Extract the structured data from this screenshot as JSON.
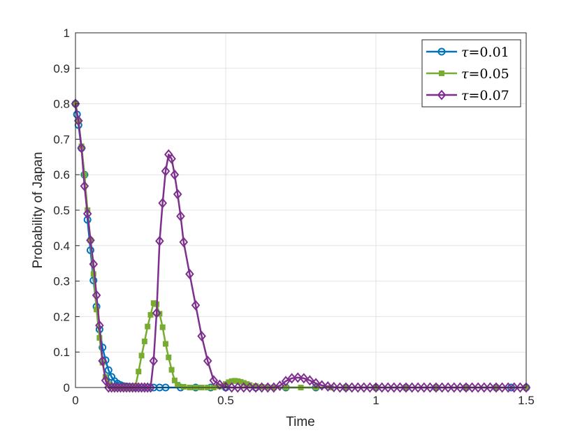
{
  "chart_data": {
    "type": "line",
    "title": "",
    "xlabel": "Time",
    "ylabel": "Probability of Japan",
    "xlim": [
      0,
      1.5
    ],
    "ylim": [
      0,
      1
    ],
    "xticks": [
      0,
      0.5,
      1,
      1.5
    ],
    "xtick_labels": [
      "0",
      "0.5",
      "1",
      "1.5"
    ],
    "yticks": [
      0,
      0.1,
      0.2,
      0.3,
      0.4,
      0.5,
      0.6,
      0.7,
      0.8,
      0.9,
      1
    ],
    "ytick_labels": [
      "0",
      "0.1",
      "0.2",
      "0.3",
      "0.4",
      "0.5",
      "0.6",
      "0.7",
      "0.8",
      "0.9",
      "1"
    ],
    "grid": true,
    "legend_position": "top-right",
    "series": [
      {
        "name": "τ=0.01",
        "tau_symbol": "τ",
        "tau_value": "=0.01",
        "color": "#0072BD",
        "marker": "circle",
        "x": [
          0,
          0.005,
          0.01,
          0.02,
          0.03,
          0.04,
          0.05,
          0.06,
          0.07,
          0.08,
          0.09,
          0.1,
          0.11,
          0.12,
          0.13,
          0.14,
          0.15,
          0.16,
          0.17,
          0.18,
          0.19,
          0.2,
          0.22,
          0.24,
          0.26,
          0.28,
          0.3,
          0.35,
          0.4,
          0.45,
          0.5,
          0.6,
          0.7,
          0.8,
          0.9,
          1.0,
          1.1,
          1.2,
          1.3,
          1.4,
          1.45,
          1.5
        ],
        "y": [
          0.8,
          0.77,
          0.74,
          0.675,
          0.6,
          0.473,
          0.387,
          0.302,
          0.228,
          0.164,
          0.113,
          0.077,
          0.049,
          0.03,
          0.018,
          0.011,
          0.007,
          0.004,
          0.003,
          0.002,
          0.001,
          0.001,
          0.0,
          0.0,
          0.0,
          0.0,
          0.0,
          0.0,
          0.0,
          0.0,
          0.0,
          0.0,
          0.0,
          0.0,
          0.0,
          0.0,
          0.0,
          0.0,
          0.0,
          0.0,
          0.0,
          0.0
        ]
      },
      {
        "name": "τ=0.05",
        "tau_symbol": "τ",
        "tau_value": "=0.05",
        "color": "#77AC30",
        "marker": "square",
        "x": [
          0,
          0.01,
          0.02,
          0.03,
          0.04,
          0.05,
          0.06,
          0.07,
          0.08,
          0.09,
          0.1,
          0.11,
          0.12,
          0.13,
          0.14,
          0.15,
          0.16,
          0.17,
          0.18,
          0.19,
          0.2,
          0.21,
          0.22,
          0.23,
          0.24,
          0.25,
          0.26,
          0.27,
          0.28,
          0.29,
          0.3,
          0.31,
          0.32,
          0.33,
          0.34,
          0.36,
          0.38,
          0.4,
          0.42,
          0.44,
          0.46,
          0.48,
          0.5,
          0.51,
          0.52,
          0.53,
          0.54,
          0.55,
          0.56,
          0.57,
          0.58,
          0.6,
          0.62,
          0.64,
          0.66,
          0.7,
          0.75,
          0.8,
          0.85,
          0.9,
          1.0,
          1.1,
          1.2,
          1.3,
          1.4,
          1.5
        ],
        "y": [
          0.8,
          0.75,
          0.68,
          0.6,
          0.5,
          0.415,
          0.32,
          0.22,
          0.14,
          0.07,
          0.03,
          0.01,
          0.003,
          0.0,
          0.0,
          0.0,
          0.0,
          0.0,
          0.0,
          0.0,
          0.005,
          0.045,
          0.09,
          0.13,
          0.172,
          0.205,
          0.238,
          0.235,
          0.208,
          0.17,
          0.123,
          0.085,
          0.05,
          0.02,
          0.008,
          0.002,
          0.0,
          0.0,
          0.0,
          0.0,
          0.0,
          0.003,
          0.01,
          0.015,
          0.018,
          0.019,
          0.018,
          0.016,
          0.013,
          0.01,
          0.007,
          0.004,
          0.002,
          0.001,
          0.0,
          0.0,
          0.0,
          0.0,
          0.0,
          0.0,
          0.0,
          0.0,
          0.0,
          0.0,
          0.0,
          0.0
        ]
      },
      {
        "name": "τ=0.07",
        "tau_symbol": "τ",
        "tau_value": "=0.07",
        "color": "#7E2F8E",
        "marker": "diamond",
        "x": [
          0,
          0.01,
          0.02,
          0.03,
          0.04,
          0.05,
          0.06,
          0.07,
          0.08,
          0.09,
          0.1,
          0.11,
          0.12,
          0.13,
          0.14,
          0.15,
          0.16,
          0.17,
          0.18,
          0.19,
          0.2,
          0.21,
          0.22,
          0.23,
          0.24,
          0.25,
          0.26,
          0.27,
          0.28,
          0.29,
          0.3,
          0.31,
          0.32,
          0.33,
          0.34,
          0.35,
          0.36,
          0.38,
          0.4,
          0.42,
          0.44,
          0.46,
          0.48,
          0.5,
          0.52,
          0.54,
          0.56,
          0.58,
          0.6,
          0.62,
          0.64,
          0.66,
          0.68,
          0.7,
          0.72,
          0.74,
          0.76,
          0.78,
          0.8,
          0.82,
          0.84,
          0.86,
          0.88,
          0.9,
          0.92,
          0.94,
          0.96,
          0.98,
          1.0,
          1.02,
          1.04,
          1.06,
          1.08,
          1.1,
          1.12,
          1.14,
          1.16,
          1.18,
          1.2,
          1.22,
          1.24,
          1.26,
          1.28,
          1.3,
          1.32,
          1.34,
          1.36,
          1.38,
          1.4,
          1.42,
          1.44,
          1.46,
          1.48,
          1.5
        ],
        "y": [
          0.8,
          0.752,
          0.675,
          0.568,
          0.49,
          0.415,
          0.348,
          0.26,
          0.175,
          0.075,
          0.02,
          0.0,
          0.0,
          0.0,
          0.0,
          0.0,
          0.0,
          0.0,
          0.0,
          0.0,
          0.0,
          0.0,
          0.0,
          0.0,
          0.0,
          0.0,
          0.075,
          0.21,
          0.413,
          0.52,
          0.61,
          0.657,
          0.645,
          0.6,
          0.545,
          0.483,
          0.41,
          0.32,
          0.232,
          0.145,
          0.075,
          0.02,
          0.008,
          0.002,
          0.0,
          0.0,
          0.0,
          0.0,
          0.0,
          0.0,
          0.0,
          0.0,
          0.005,
          0.018,
          0.026,
          0.028,
          0.026,
          0.02,
          0.012,
          0.006,
          0.003,
          0.001,
          0.0,
          0.0,
          0.0,
          0.0,
          0.0,
          0.0,
          0.0,
          0.0,
          0.0,
          0.0,
          0.0,
          0.0,
          0.0,
          0.0,
          0.0,
          0.0,
          0.0,
          0.0,
          0.0,
          0.0,
          0.0,
          0.0,
          0.0,
          0.0,
          0.0,
          0.0,
          0.0,
          0.0,
          0.0,
          0.0,
          0.0,
          0.0
        ]
      }
    ]
  }
}
